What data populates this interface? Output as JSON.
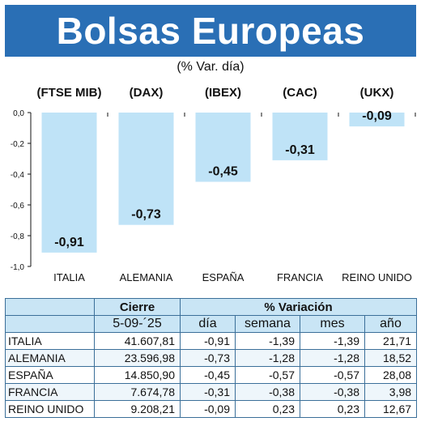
{
  "title": "Bolsas Europeas",
  "subtitle": "(% Var. día)",
  "chart_data": {
    "type": "bar",
    "index_labels": [
      "(FTSE MIB)",
      "(DAX)",
      "(IBEX)",
      "(CAC)",
      "(UKX)"
    ],
    "categories": [
      "ITALIA",
      "ALEMANIA",
      "ESPAÑA",
      "FRANCIA",
      "REINO UNIDO"
    ],
    "values": [
      -0.91,
      -0.73,
      -0.45,
      -0.31,
      -0.09
    ],
    "value_labels": [
      "-0,91",
      "-0,73",
      "-0,45",
      "-0,31",
      "-0,09"
    ],
    "yticks": [
      "0,0",
      "-0,2",
      "-0,4",
      "-0,6",
      "-0,8",
      "-1,0"
    ],
    "ylim": [
      -1.0,
      0.0
    ],
    "bar_color": "#bfe3f7",
    "grid": false
  },
  "table": {
    "group_headers": {
      "cierre": "Cierre",
      "variacion": "% Variación"
    },
    "columns": [
      "5-09-´25",
      "día",
      "semana",
      "mes",
      "año"
    ],
    "rows": [
      {
        "name": "ITALIA",
        "cierre": "41.607,81",
        "dia": "-0,91",
        "semana": "-1,39",
        "mes": "-1,39",
        "anio": "21,71"
      },
      {
        "name": "ALEMANIA",
        "cierre": "23.596,98",
        "dia": "-0,73",
        "semana": "-1,28",
        "mes": "-1,28",
        "anio": "18,52"
      },
      {
        "name": "ESPAÑA",
        "cierre": "14.850,90",
        "dia": "-0,45",
        "semana": "-0,57",
        "mes": "-0,57",
        "anio": "28,08"
      },
      {
        "name": "FRANCIA",
        "cierre": "7.674,78",
        "dia": "-0,31",
        "semana": "-0,38",
        "mes": "-0,38",
        "anio": "3,98"
      },
      {
        "name": "REINO UNIDO",
        "cierre": "9.208,21",
        "dia": "-0,09",
        "semana": "0,23",
        "mes": "0,23",
        "anio": "12,67"
      }
    ]
  },
  "colors": {
    "banner": "#2a6fb5",
    "table_header": "#c9e5f5",
    "border": "#3b6f99"
  }
}
